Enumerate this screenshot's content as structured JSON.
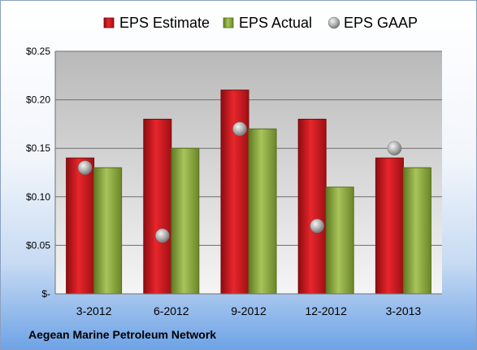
{
  "chart_data": {
    "type": "bar",
    "categories": [
      "3-2012",
      "6-2012",
      "9-2012",
      "12-2012",
      "3-2013"
    ],
    "series": [
      {
        "name": "EPS Estimate",
        "type": "bar",
        "values": [
          0.14,
          0.18,
          0.21,
          0.18,
          0.14
        ]
      },
      {
        "name": "EPS Actual",
        "type": "bar",
        "values": [
          0.13,
          0.15,
          0.17,
          0.11,
          0.13
        ]
      },
      {
        "name": "EPS GAAP",
        "type": "scatter",
        "values": [
          0.13,
          0.06,
          0.17,
          0.07,
          0.15
        ]
      }
    ],
    "y_ticks": [
      "$-",
      "$0.05",
      "$0.10",
      "$0.15",
      "$0.20",
      "$0.25"
    ],
    "ylim": [
      0,
      0.25
    ],
    "grid": true,
    "legend_position": "top"
  },
  "footer_title": "Aegean Marine Petroleum Network",
  "colors": {
    "estimate": "#c0141a",
    "actual": "#8fab3a",
    "gaap": "#a9a9a9"
  }
}
